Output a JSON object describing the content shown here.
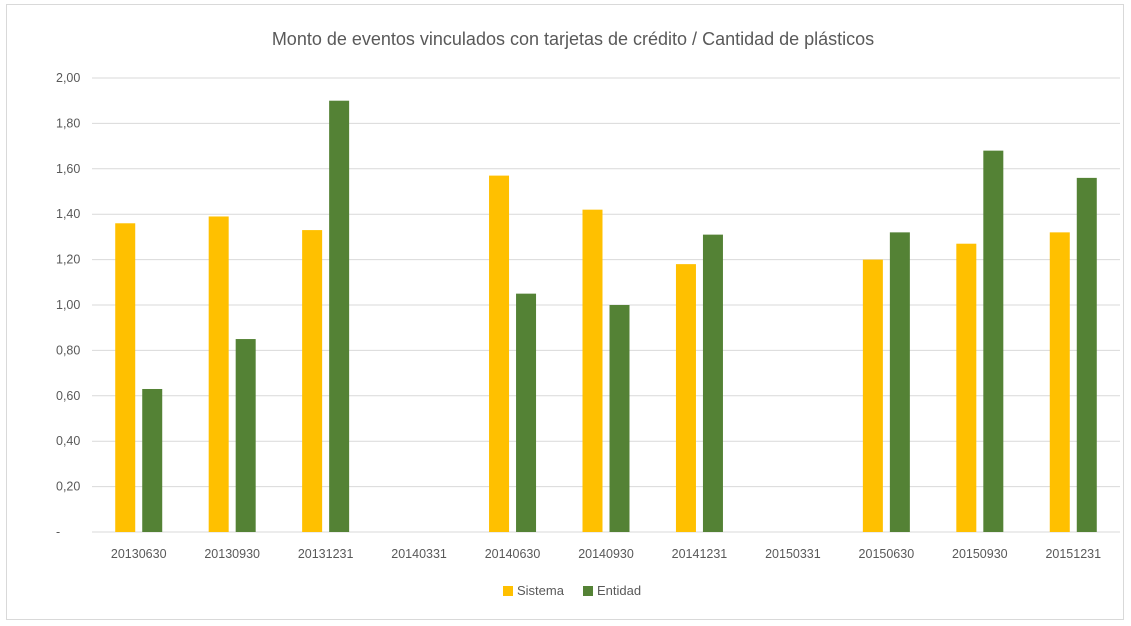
{
  "chart_data": {
    "type": "bar",
    "title": "Monto de eventos vinculados con tarjetas de crédito / Cantidad de plásticos",
    "xlabel": "",
    "ylabel": "",
    "ylim": [
      0,
      2.0
    ],
    "y_ticks": [
      "-",
      "0,20",
      "0,40",
      "0,60",
      "0,80",
      "1,00",
      "1,20",
      "1,40",
      "1,60",
      "1,80",
      "2,00"
    ],
    "grid": true,
    "legend_position": "bottom",
    "categories": [
      "20130630",
      "20130930",
      "20131231",
      "20140331",
      "20140630",
      "20140930",
      "20141231",
      "20150331",
      "20150630",
      "20150930",
      "20151231"
    ],
    "series": [
      {
        "name": "Sistema",
        "color": "#ffc000",
        "values": [
          1.36,
          1.39,
          1.33,
          null,
          1.57,
          1.42,
          1.18,
          null,
          1.2,
          1.27,
          1.32
        ]
      },
      {
        "name": "Entidad",
        "color": "#548235",
        "values": [
          0.63,
          0.85,
          1.9,
          null,
          1.05,
          1.0,
          1.31,
          null,
          1.32,
          1.68,
          1.56
        ]
      }
    ]
  }
}
